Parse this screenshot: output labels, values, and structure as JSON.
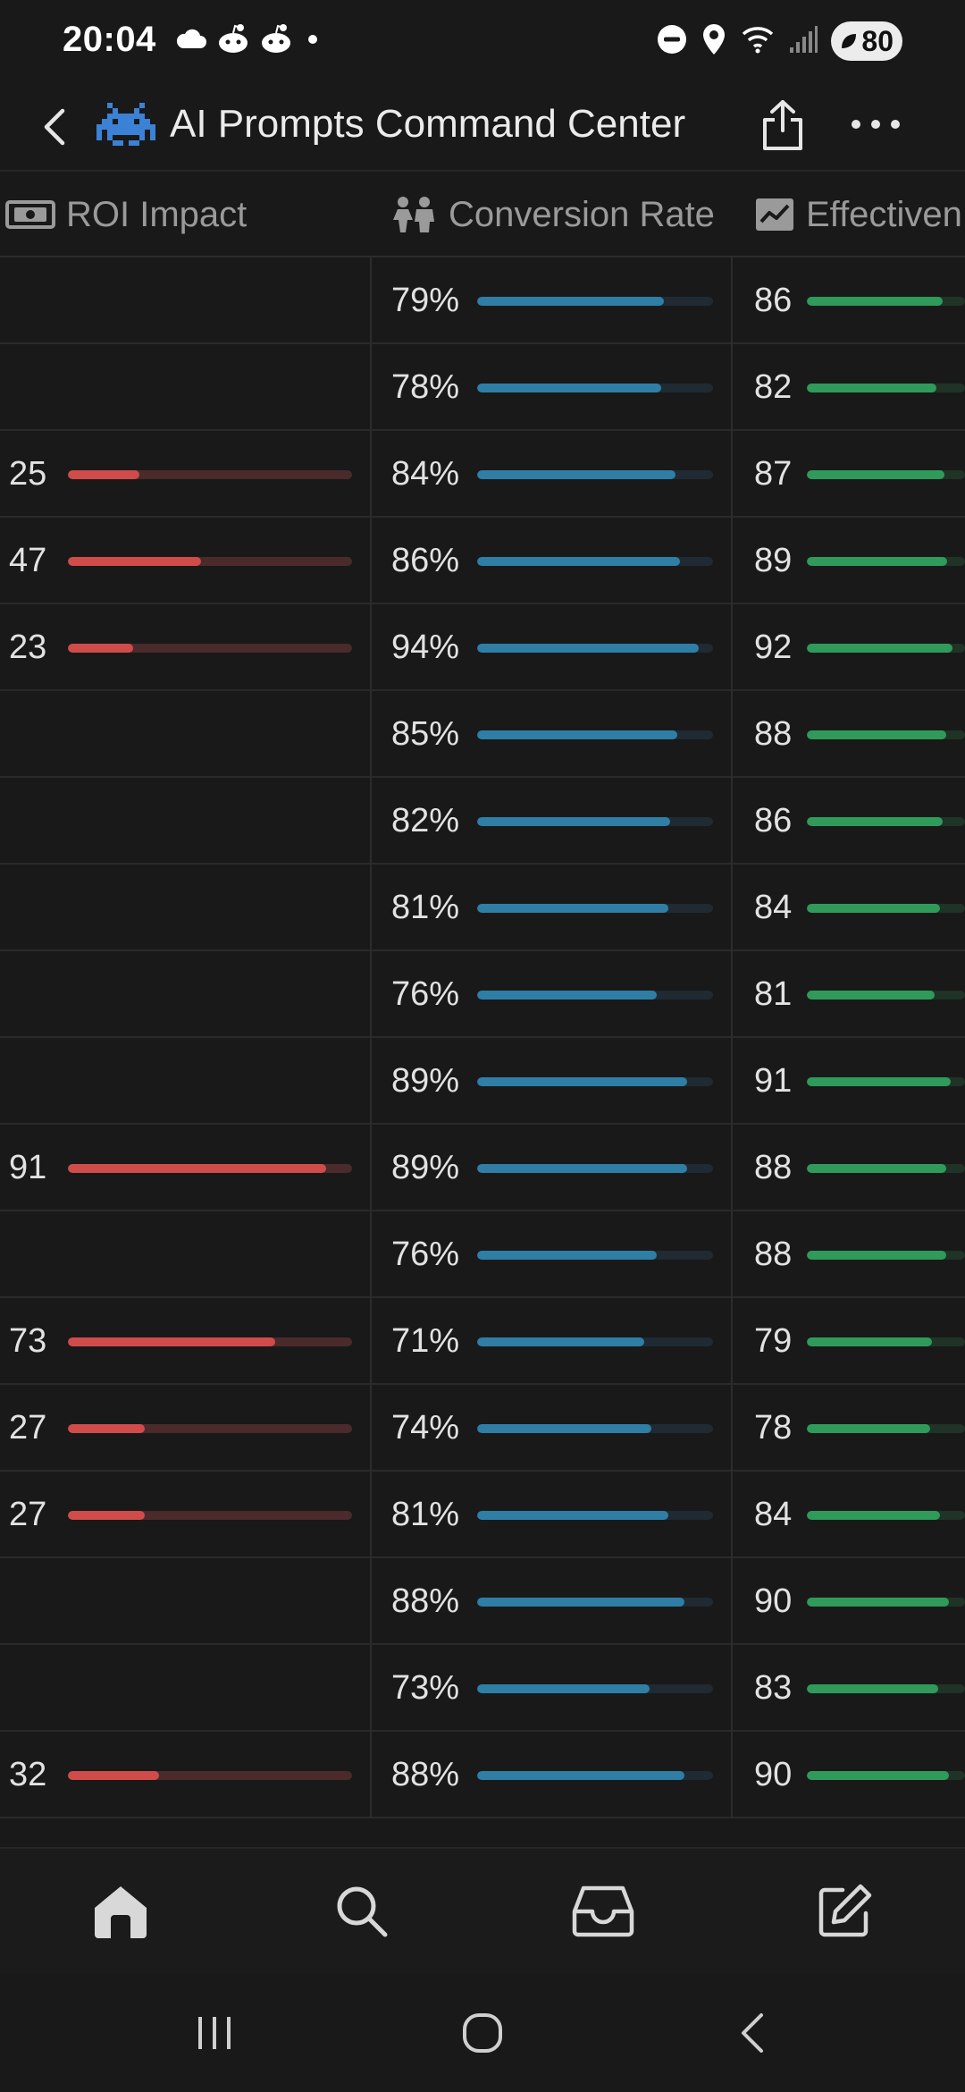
{
  "status_bar": {
    "time": "20:04",
    "battery": "80",
    "left_icons": [
      "cloud-icon",
      "reddit-icon",
      "reddit-icon",
      "dot-icon"
    ],
    "right_icons": [
      "do-not-disturb-icon",
      "location-icon",
      "wifi-icon",
      "signal-icon",
      "battery-icon"
    ]
  },
  "app_bar": {
    "title": "AI Prompts Command Center",
    "logo_icon": "space-invader-icon",
    "back_icon": "chevron-left-icon",
    "share_icon": "share-icon",
    "more_icon": "more-horizontal-icon"
  },
  "table": {
    "columns": [
      {
        "label": "ROI Impact",
        "icon": "money-icon"
      },
      {
        "label": "Conversion Rate",
        "icon": "people-icon"
      },
      {
        "label": "Effectiven",
        "icon": "trend-chart-icon"
      }
    ],
    "colors": {
      "roi": "#cf4c4a",
      "conversion": "#2f7ea6",
      "effectiveness": "#2f9a5a"
    },
    "rows": [
      {
        "roi": "",
        "roi_fraction": 0,
        "conv": "79%",
        "conv_fraction": 0.79,
        "eff": "86",
        "eff_fraction": 0.86
      },
      {
        "roi": "",
        "roi_fraction": 0,
        "conv": "78%",
        "conv_fraction": 0.78,
        "eff": "82",
        "eff_fraction": 0.82
      },
      {
        "roi": "25",
        "roi_fraction": 0.25,
        "conv": "84%",
        "conv_fraction": 0.84,
        "eff": "87",
        "eff_fraction": 0.87
      },
      {
        "roi": "47",
        "roi_fraction": 0.47,
        "conv": "86%",
        "conv_fraction": 0.86,
        "eff": "89",
        "eff_fraction": 0.89
      },
      {
        "roi": "23",
        "roi_fraction": 0.23,
        "conv": "94%",
        "conv_fraction": 0.94,
        "eff": "92",
        "eff_fraction": 0.92
      },
      {
        "roi": "",
        "roi_fraction": 0,
        "conv": "85%",
        "conv_fraction": 0.85,
        "eff": "88",
        "eff_fraction": 0.88
      },
      {
        "roi": "",
        "roi_fraction": 0,
        "conv": "82%",
        "conv_fraction": 0.82,
        "eff": "86",
        "eff_fraction": 0.86
      },
      {
        "roi": "",
        "roi_fraction": 0,
        "conv": "81%",
        "conv_fraction": 0.81,
        "eff": "84",
        "eff_fraction": 0.84
      },
      {
        "roi": "",
        "roi_fraction": 0,
        "conv": "76%",
        "conv_fraction": 0.76,
        "eff": "81",
        "eff_fraction": 0.81
      },
      {
        "roi": "",
        "roi_fraction": 0,
        "conv": "89%",
        "conv_fraction": 0.89,
        "eff": "91",
        "eff_fraction": 0.91
      },
      {
        "roi": "91",
        "roi_fraction": 0.91,
        "conv": "89%",
        "conv_fraction": 0.89,
        "eff": "88",
        "eff_fraction": 0.88
      },
      {
        "roi": "",
        "roi_fraction": 0,
        "conv": "76%",
        "conv_fraction": 0.76,
        "eff": "88",
        "eff_fraction": 0.88
      },
      {
        "roi": "73",
        "roi_fraction": 0.73,
        "conv": "71%",
        "conv_fraction": 0.71,
        "eff": "79",
        "eff_fraction": 0.79
      },
      {
        "roi": "27",
        "roi_fraction": 0.27,
        "conv": "74%",
        "conv_fraction": 0.74,
        "eff": "78",
        "eff_fraction": 0.78
      },
      {
        "roi": "27",
        "roi_fraction": 0.27,
        "conv": "81%",
        "conv_fraction": 0.81,
        "eff": "84",
        "eff_fraction": 0.84
      },
      {
        "roi": "",
        "roi_fraction": 0,
        "conv": "88%",
        "conv_fraction": 0.88,
        "eff": "90",
        "eff_fraction": 0.9
      },
      {
        "roi": "",
        "roi_fraction": 0,
        "conv": "73%",
        "conv_fraction": 0.73,
        "eff": "83",
        "eff_fraction": 0.83
      },
      {
        "roi": "32",
        "roi_fraction": 0.32,
        "conv": "88%",
        "conv_fraction": 0.88,
        "eff": "90",
        "eff_fraction": 0.9
      }
    ]
  },
  "bottom_nav": {
    "items": [
      "home-icon",
      "search-icon",
      "inbox-icon",
      "edit-icon"
    ]
  },
  "system_nav": {
    "items": [
      "recent-apps-icon",
      "home-circle-icon",
      "system-back-icon"
    ]
  }
}
